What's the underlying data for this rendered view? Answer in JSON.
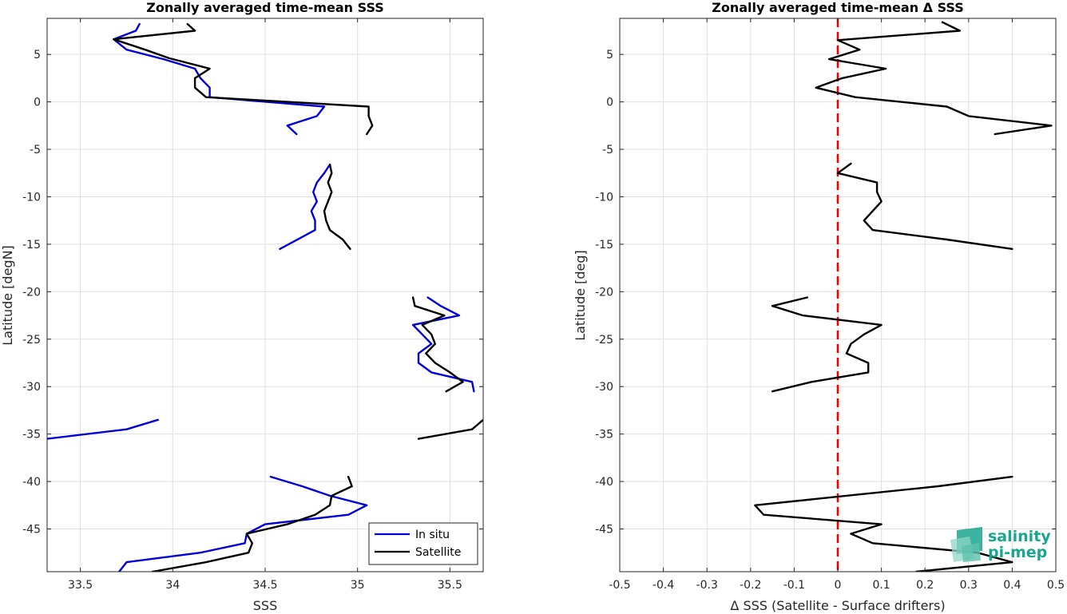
{
  "chart_data": [
    {
      "type": "line",
      "title": "Zonally averaged time-mean SSS",
      "xlabel": "SSS",
      "ylabel": "Latitude [degN]",
      "xlim": [
        33.32,
        35.68
      ],
      "ylim": [
        -49.5,
        8.8
      ],
      "xticks": [
        33.5,
        34,
        34.5,
        35,
        35.5
      ],
      "xtick_labels": [
        "33.5",
        "34",
        "34.5",
        "35",
        "35.5"
      ],
      "yticks": [
        5,
        0,
        -5,
        -10,
        -15,
        -20,
        -25,
        -30,
        -35,
        -40,
        -45
      ],
      "ytick_labels": [
        "5",
        "0",
        "-5",
        "-10",
        "-15",
        "-20",
        "-25",
        "-30",
        "-35",
        "-40",
        "-45"
      ],
      "grid": true,
      "legend": "bottom-right",
      "series": [
        {
          "name": "In situ",
          "color": "#0000dd",
          "segments": [
            [
              [
                33.82,
                8.2
              ],
              [
                33.8,
                7.5
              ],
              [
                33.68,
                6.6
              ],
              [
                33.75,
                5.5
              ],
              [
                33.95,
                4.5
              ],
              [
                34.12,
                3.5
              ],
              [
                34.15,
                2.5
              ],
              [
                34.2,
                1.5
              ],
              [
                34.2,
                0.5
              ],
              [
                34.82,
                -0.5
              ],
              [
                34.78,
                -1.5
              ],
              [
                34.62,
                -2.5
              ],
              [
                34.67,
                -3.4
              ]
            ],
            [
              [
                34.85,
                -6.6
              ],
              [
                34.82,
                -7.5
              ],
              [
                34.78,
                -8.5
              ],
              [
                34.76,
                -9.5
              ],
              [
                34.78,
                -10.5
              ],
              [
                34.75,
                -11.5
              ],
              [
                34.77,
                -12.5
              ],
              [
                34.77,
                -13.5
              ],
              [
                34.58,
                -15.5
              ]
            ],
            [
              [
                35.38,
                -20.6
              ],
              [
                35.45,
                -21.5
              ],
              [
                35.55,
                -22.5
              ],
              [
                35.3,
                -23.5
              ],
              [
                35.35,
                -24.5
              ],
              [
                35.4,
                -25.5
              ],
              [
                35.33,
                -26.5
              ],
              [
                35.33,
                -27.5
              ],
              [
                35.4,
                -28.5
              ],
              [
                35.62,
                -29.5
              ],
              [
                35.63,
                -30.5
              ]
            ],
            [
              [
                33.92,
                -33.5
              ],
              [
                33.75,
                -34.5
              ],
              [
                33.32,
                -35.5
              ]
            ],
            [
              [
                34.53,
                -39.5
              ],
              [
                34.7,
                -40.5
              ],
              [
                34.85,
                -41.5
              ],
              [
                35.05,
                -42.5
              ],
              [
                34.95,
                -43.5
              ],
              [
                34.5,
                -44.5
              ],
              [
                34.4,
                -45.5
              ],
              [
                34.39,
                -46.5
              ],
              [
                34.15,
                -47.5
              ],
              [
                33.75,
                -48.5
              ],
              [
                33.71,
                -49.5
              ]
            ]
          ]
        },
        {
          "name": "Satellite",
          "color": "#000000",
          "segments": [
            [
              [
                34.08,
                8.2
              ],
              [
                34.12,
                7.5
              ],
              [
                33.68,
                6.6
              ],
              [
                33.85,
                5.5
              ],
              [
                33.98,
                4.6
              ],
              [
                34.2,
                3.5
              ],
              [
                34.12,
                2.5
              ],
              [
                34.12,
                1.5
              ],
              [
                34.18,
                0.5
              ],
              [
                35.06,
                -0.5
              ],
              [
                35.06,
                -1.5
              ],
              [
                35.08,
                -2.5
              ],
              [
                35.05,
                -3.4
              ]
            ],
            [
              [
                34.85,
                -6.6
              ],
              [
                34.86,
                -7.5
              ],
              [
                34.84,
                -8.5
              ],
              [
                34.86,
                -9.5
              ],
              [
                34.84,
                -10.5
              ],
              [
                34.82,
                -11.5
              ],
              [
                34.83,
                -12.5
              ],
              [
                34.85,
                -13.5
              ],
              [
                34.92,
                -14.5
              ],
              [
                34.96,
                -15.5
              ]
            ],
            [
              [
                35.3,
                -20.6
              ],
              [
                35.31,
                -21.5
              ],
              [
                35.47,
                -22.5
              ],
              [
                35.35,
                -23.5
              ],
              [
                35.4,
                -24.5
              ],
              [
                35.42,
                -25.5
              ],
              [
                35.37,
                -26.5
              ],
              [
                35.42,
                -27.5
              ],
              [
                35.5,
                -28.5
              ],
              [
                35.57,
                -29.5
              ],
              [
                35.48,
                -30.5
              ]
            ],
            [
              [
                35.68,
                -33.5
              ],
              [
                35.62,
                -34.5
              ],
              [
                35.33,
                -35.5
              ]
            ],
            [
              [
                34.95,
                -39.5
              ],
              [
                34.97,
                -40.5
              ],
              [
                34.86,
                -41.5
              ],
              [
                34.85,
                -42.5
              ],
              [
                34.77,
                -43.5
              ],
              [
                34.62,
                -44.5
              ],
              [
                34.4,
                -45.5
              ],
              [
                34.43,
                -46.5
              ],
              [
                34.41,
                -47.5
              ],
              [
                34.18,
                -48.5
              ],
              [
                33.89,
                -49.5
              ]
            ]
          ]
        }
      ]
    },
    {
      "type": "line",
      "title": "Zonally averaged time-mean Δ SSS",
      "xlabel": "Δ SSS (Satellite - Surface drifters)",
      "ylabel": "Latitude [deg]",
      "xlim": [
        -0.5,
        0.5
      ],
      "ylim": [
        -49.5,
        8.8
      ],
      "xticks": [
        -0.5,
        -0.4,
        -0.3,
        -0.2,
        -0.1,
        0,
        0.1,
        0.2,
        0.3,
        0.4,
        0.5
      ],
      "xtick_labels": [
        "-0.5",
        "-0.4",
        "-0.3",
        "-0.2",
        "-0.1",
        "0",
        "0.1",
        "0.2",
        "0.3",
        "0.4",
        "0.5"
      ],
      "yticks": [
        5,
        0,
        -5,
        -10,
        -15,
        -20,
        -25,
        -30,
        -35,
        -40,
        -45
      ],
      "ytick_labels": [
        "5",
        "0",
        "-5",
        "-10",
        "-15",
        "-20",
        "-25",
        "-30",
        "-35",
        "-40",
        "-45"
      ],
      "grid": true,
      "reference_line": {
        "x": 0,
        "color": "#ee0000",
        "style": "dashed"
      },
      "series": [
        {
          "color": "#000000",
          "segments": [
            [
              [
                0.24,
                8.4
              ],
              [
                0.28,
                7.5
              ],
              [
                0.0,
                6.5
              ],
              [
                0.05,
                5.5
              ],
              [
                -0.02,
                4.5
              ],
              [
                0.11,
                3.5
              ],
              [
                0.01,
                2.5
              ],
              [
                -0.05,
                1.5
              ],
              [
                0.04,
                0.5
              ],
              [
                0.25,
                -0.5
              ],
              [
                0.3,
                -1.5
              ],
              [
                0.49,
                -2.5
              ],
              [
                0.36,
                -3.4
              ]
            ],
            [
              [
                0.03,
                -6.5
              ],
              [
                0.0,
                -7.5
              ],
              [
                0.09,
                -8.5
              ],
              [
                0.09,
                -9.5
              ],
              [
                0.1,
                -10.5
              ],
              [
                0.08,
                -11.5
              ],
              [
                0.06,
                -12.5
              ],
              [
                0.08,
                -13.5
              ],
              [
                0.25,
                -14.5
              ],
              [
                0.4,
                -15.5
              ]
            ],
            [
              [
                -0.07,
                -20.6
              ],
              [
                -0.15,
                -21.5
              ],
              [
                -0.08,
                -22.5
              ],
              [
                0.1,
                -23.5
              ],
              [
                0.06,
                -24.5
              ],
              [
                0.03,
                -25.5
              ],
              [
                0.02,
                -26.5
              ],
              [
                0.07,
                -27.5
              ],
              [
                0.07,
                -28.5
              ],
              [
                -0.06,
                -29.5
              ],
              [
                -0.15,
                -30.5
              ]
            ],
            [
              [
                0.4,
                -39.5
              ],
              [
                0.23,
                -40.5
              ],
              [
                -0.19,
                -42.5
              ],
              [
                -0.17,
                -43.5
              ],
              [
                0.1,
                -44.5
              ],
              [
                0.03,
                -45.5
              ],
              [
                0.08,
                -46.5
              ],
              [
                0.32,
                -47.5
              ],
              [
                0.4,
                -48.5
              ],
              [
                0.18,
                -49.5
              ]
            ]
          ]
        }
      ]
    }
  ],
  "logo": {
    "line1": "salinity",
    "line2": "pi-mep"
  },
  "colors": {
    "insitu": "#0000dd",
    "satellite": "#000000",
    "zero_line": "#ee0000",
    "logo": "#1aa68e"
  }
}
